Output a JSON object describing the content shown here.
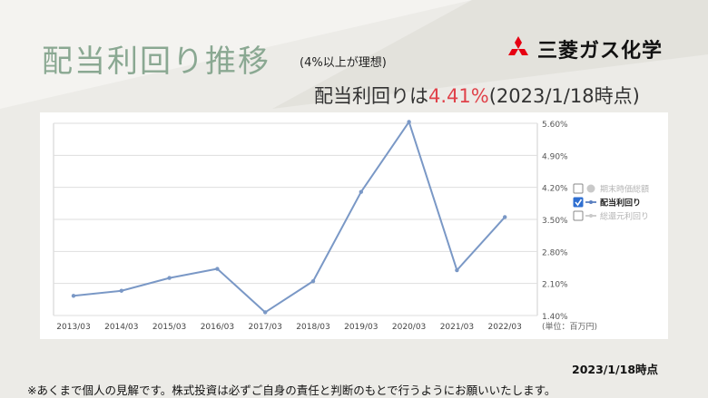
{
  "slide": {
    "title": "配当利回り推移",
    "subtitle": "(4%以上が理想)",
    "company_name": "三菱ガス化学",
    "yield_prefix": "配当利回りは",
    "yield_value": "4.41%",
    "yield_suffix": "(2023/1/18時点)",
    "date_note": "2023/1/18時点",
    "disclaimer": "※あくまで個人の見解です。株式投資は必ずご自身の責任と判断のもとで行うようにお願いいたします。",
    "accent_color": "#e0424a",
    "title_color": "#8aa892",
    "logo_color": "#e60012"
  },
  "chart_data": {
    "type": "line",
    "categories": [
      "2013/03",
      "2014/03",
      "2015/03",
      "2016/03",
      "2017/03",
      "2018/03",
      "2019/03",
      "2020/03",
      "2021/03",
      "2022/03"
    ],
    "series": [
      {
        "name": "配当利回り",
        "values": [
          1.83,
          1.94,
          2.22,
          2.42,
          1.47,
          2.15,
          4.1,
          5.63,
          2.39,
          3.55
        ],
        "color": "#7a98c6"
      }
    ],
    "yticks": [
      "5.60%",
      "4.90%",
      "4.20%",
      "3.50%",
      "2.80%",
      "2.10%",
      "1.40%"
    ],
    "ylim": [
      1.4,
      5.6
    ],
    "unit_label": "(単位：百万円)",
    "legend": [
      {
        "label": "期末時価総額",
        "checked": false,
        "active": false
      },
      {
        "label": "配当利回り",
        "checked": true,
        "active": true
      },
      {
        "label": "総還元利回り",
        "checked": false,
        "active": false
      }
    ],
    "legend_position": "right",
    "grid": "horizontal"
  }
}
